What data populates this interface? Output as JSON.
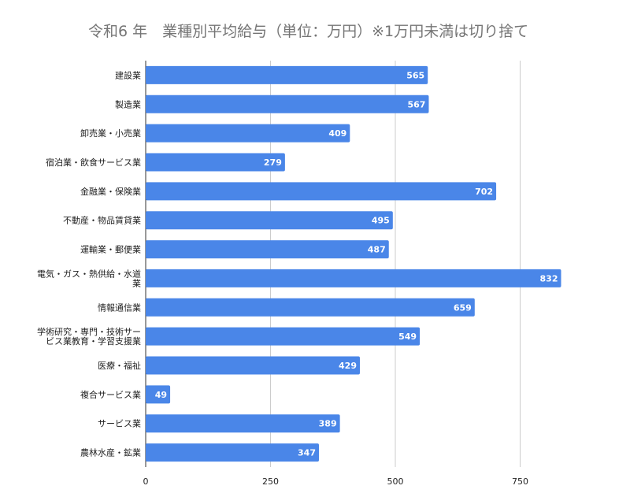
{
  "chart_data": {
    "type": "bar",
    "orientation": "horizontal",
    "title": "令和6 年　業種別平均給与（単位：万円）※1万円未満は切り捨て",
    "categories": [
      [
        "建設業"
      ],
      [
        "製造業"
      ],
      [
        "卸売業・小売業"
      ],
      [
        "宿泊業・飲食サービス業"
      ],
      [
        "金融業・保険業"
      ],
      [
        "不動産・物品賃貸業"
      ],
      [
        "運輸業・郵便業"
      ],
      [
        "電気・ガス・熱供給・水道",
        "業"
      ],
      [
        "情報通信業"
      ],
      [
        "学術研究・専門・技術サー",
        "ビス業教育・学習支援業"
      ],
      [
        "医療・福祉"
      ],
      [
        "複合サービス業"
      ],
      [
        "サービス業"
      ],
      [
        "農林水産・鉱業"
      ]
    ],
    "values": [
      565,
      567,
      409,
      279,
      702,
      495,
      487,
      832,
      659,
      549,
      429,
      49,
      389,
      347
    ],
    "xlim": [
      0,
      1000
    ],
    "ticks": [
      0,
      250,
      500,
      750
    ],
    "grid": true,
    "legend": "none",
    "bar_color": "#4a86e8"
  }
}
